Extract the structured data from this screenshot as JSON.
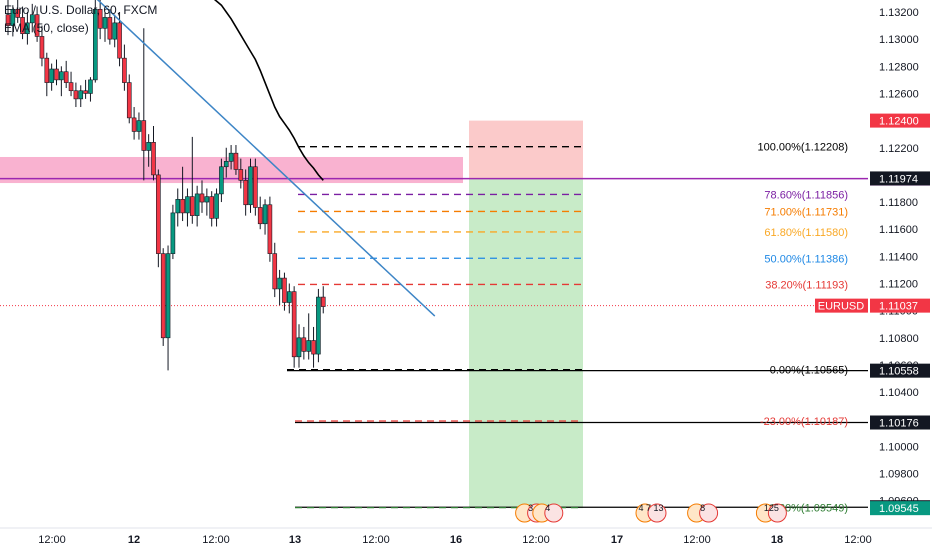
{
  "legend": {
    "title": "Euro / U.S. Dollar, 60, FXCM",
    "ema": "EMA (50, close)"
  },
  "chart_data": {
    "type": "candlestick",
    "symbol": "EURUSD",
    "timeframe": "60",
    "ylim": [
      1.095,
      1.133
    ],
    "y_ticks": [
      "1.13200",
      "1.13000",
      "1.12800",
      "1.12600",
      "1.12400",
      "1.12200",
      "1.12000",
      "1.11800",
      "1.11600",
      "1.11400",
      "1.11200",
      "1.11000",
      "1.10800",
      "1.10600",
      "1.10400",
      "1.10200",
      "1.10000",
      "1.09800",
      "1.09600"
    ],
    "x_ticks": [
      "12:00",
      "12",
      "12:00",
      "13",
      "12:00",
      "16",
      "12:00",
      "17",
      "12:00",
      "18",
      "12:00"
    ],
    "candles": [
      {
        "o": 1.1318,
        "h": 1.133,
        "l": 1.1303,
        "c": 1.131
      },
      {
        "o": 1.131,
        "h": 1.1325,
        "l": 1.1302,
        "c": 1.1322
      },
      {
        "o": 1.1322,
        "h": 1.133,
        "l": 1.1312,
        "c": 1.1316
      },
      {
        "o": 1.1316,
        "h": 1.1324,
        "l": 1.13,
        "c": 1.1304
      },
      {
        "o": 1.1304,
        "h": 1.132,
        "l": 1.1296,
        "c": 1.1312
      },
      {
        "o": 1.1312,
        "h": 1.1326,
        "l": 1.1305,
        "c": 1.1318
      },
      {
        "o": 1.1318,
        "h": 1.1324,
        "l": 1.1298,
        "c": 1.1302
      },
      {
        "o": 1.1302,
        "h": 1.131,
        "l": 1.128,
        "c": 1.1286
      },
      {
        "o": 1.1286,
        "h": 1.129,
        "l": 1.1258,
        "c": 1.1268
      },
      {
        "o": 1.1268,
        "h": 1.1282,
        "l": 1.1262,
        "c": 1.1278
      },
      {
        "o": 1.1278,
        "h": 1.1285,
        "l": 1.1266,
        "c": 1.127
      },
      {
        "o": 1.127,
        "h": 1.128,
        "l": 1.1258,
        "c": 1.1276
      },
      {
        "o": 1.1276,
        "h": 1.1284,
        "l": 1.1264,
        "c": 1.1268
      },
      {
        "o": 1.1268,
        "h": 1.1276,
        "l": 1.1258,
        "c": 1.1262
      },
      {
        "o": 1.1262,
        "h": 1.1268,
        "l": 1.125,
        "c": 1.1256
      },
      {
        "o": 1.1256,
        "h": 1.1266,
        "l": 1.125,
        "c": 1.1262
      },
      {
        "o": 1.1262,
        "h": 1.127,
        "l": 1.1256,
        "c": 1.126
      },
      {
        "o": 1.126,
        "h": 1.1272,
        "l": 1.1254,
        "c": 1.127
      },
      {
        "o": 1.127,
        "h": 1.133,
        "l": 1.1268,
        "c": 1.1322
      },
      {
        "o": 1.1322,
        "h": 1.133,
        "l": 1.13,
        "c": 1.1308
      },
      {
        "o": 1.1308,
        "h": 1.132,
        "l": 1.1298,
        "c": 1.1316
      },
      {
        "o": 1.1316,
        "h": 1.1322,
        "l": 1.1296,
        "c": 1.13
      },
      {
        "o": 1.13,
        "h": 1.1318,
        "l": 1.1294,
        "c": 1.1312
      },
      {
        "o": 1.1312,
        "h": 1.132,
        "l": 1.128,
        "c": 1.1286
      },
      {
        "o": 1.1286,
        "h": 1.1296,
        "l": 1.1262,
        "c": 1.1268
      },
      {
        "o": 1.1268,
        "h": 1.1274,
        "l": 1.1238,
        "c": 1.1242
      },
      {
        "o": 1.1242,
        "h": 1.125,
        "l": 1.1226,
        "c": 1.1232
      },
      {
        "o": 1.1232,
        "h": 1.1246,
        "l": 1.1226,
        "c": 1.124
      },
      {
        "o": 1.124,
        "h": 1.1308,
        "l": 1.1196,
        "c": 1.1218
      },
      {
        "o": 1.1218,
        "h": 1.123,
        "l": 1.1206,
        "c": 1.1224
      },
      {
        "o": 1.1224,
        "h": 1.1236,
        "l": 1.1196,
        "c": 1.12
      },
      {
        "o": 1.12,
        "h": 1.1204,
        "l": 1.1132,
        "c": 1.1142
      },
      {
        "o": 1.1142,
        "h": 1.1146,
        "l": 1.1074,
        "c": 1.108
      },
      {
        "o": 1.108,
        "h": 1.1148,
        "l": 1.1056,
        "c": 1.1142
      },
      {
        "o": 1.1142,
        "h": 1.1178,
        "l": 1.1138,
        "c": 1.1172
      },
      {
        "o": 1.1172,
        "h": 1.119,
        "l": 1.1162,
        "c": 1.1182
      },
      {
        "o": 1.1182,
        "h": 1.1206,
        "l": 1.1166,
        "c": 1.1172
      },
      {
        "o": 1.1172,
        "h": 1.119,
        "l": 1.1162,
        "c": 1.1184
      },
      {
        "o": 1.1184,
        "h": 1.1228,
        "l": 1.1164,
        "c": 1.117
      },
      {
        "o": 1.117,
        "h": 1.1192,
        "l": 1.1162,
        "c": 1.1186
      },
      {
        "o": 1.1186,
        "h": 1.1196,
        "l": 1.1172,
        "c": 1.118
      },
      {
        "o": 1.118,
        "h": 1.119,
        "l": 1.117,
        "c": 1.1184
      },
      {
        "o": 1.1184,
        "h": 1.1188,
        "l": 1.1162,
        "c": 1.1168
      },
      {
        "o": 1.1168,
        "h": 1.119,
        "l": 1.1162,
        "c": 1.1186
      },
      {
        "o": 1.1186,
        "h": 1.1212,
        "l": 1.118,
        "c": 1.1206
      },
      {
        "o": 1.1206,
        "h": 1.122,
        "l": 1.1198,
        "c": 1.121
      },
      {
        "o": 1.121,
        "h": 1.1222,
        "l": 1.1204,
        "c": 1.1216
      },
      {
        "o": 1.1216,
        "h": 1.1222,
        "l": 1.12,
        "c": 1.1204
      },
      {
        "o": 1.1204,
        "h": 1.1212,
        "l": 1.119,
        "c": 1.1196
      },
      {
        "o": 1.1196,
        "h": 1.1204,
        "l": 1.117,
        "c": 1.1178
      },
      {
        "o": 1.1178,
        "h": 1.1212,
        "l": 1.1172,
        "c": 1.1206
      },
      {
        "o": 1.1206,
        "h": 1.1212,
        "l": 1.117,
        "c": 1.1176
      },
      {
        "o": 1.1176,
        "h": 1.1184,
        "l": 1.116,
        "c": 1.1164
      },
      {
        "o": 1.1164,
        "h": 1.1182,
        "l": 1.1156,
        "c": 1.1178
      },
      {
        "o": 1.1178,
        "h": 1.1184,
        "l": 1.1136,
        "c": 1.1142
      },
      {
        "o": 1.1142,
        "h": 1.115,
        "l": 1.111,
        "c": 1.1116
      },
      {
        "o": 1.1116,
        "h": 1.113,
        "l": 1.1104,
        "c": 1.1124
      },
      {
        "o": 1.1124,
        "h": 1.1128,
        "l": 1.11,
        "c": 1.1106
      },
      {
        "o": 1.1106,
        "h": 1.112,
        "l": 1.1098,
        "c": 1.1114
      },
      {
        "o": 1.1114,
        "h": 1.1118,
        "l": 1.1058,
        "c": 1.1066
      },
      {
        "o": 1.1066,
        "h": 1.109,
        "l": 1.1058,
        "c": 1.108
      },
      {
        "o": 1.108,
        "h": 1.1088,
        "l": 1.1064,
        "c": 1.107
      },
      {
        "o": 1.107,
        "h": 1.1098,
        "l": 1.1064,
        "c": 1.1078
      },
      {
        "o": 1.1078,
        "h": 1.1088,
        "l": 1.1058,
        "c": 1.1068
      },
      {
        "o": 1.1068,
        "h": 1.1116,
        "l": 1.1062,
        "c": 1.111
      },
      {
        "o": 1.111,
        "h": 1.1118,
        "l": 1.1098,
        "c": 1.1103
      }
    ],
    "ema": [
      1.1342,
      1.134,
      1.1337,
      1.1334,
      1.1331,
      1.1328,
      1.1325,
      1.132,
      1.1315,
      1.1309,
      1.1303,
      1.1297,
      1.1291,
      1.1285,
      1.1277,
      1.1268,
      1.1259,
      1.125,
      1.1243,
      1.1238,
      1.1233,
      1.1227,
      1.122,
      1.1214,
      1.1209,
      1.1205,
      1.12,
      1.1196
    ],
    "ema_start_index": 38,
    "trendline": {
      "from": {
        "i": 17,
        "v": 1.1334
      },
      "to": {
        "i": 88,
        "v": 1.1096
      },
      "color": "#3d85c6"
    },
    "resistance_zone": {
      "from": 1.1194,
      "to": 1.12132,
      "color": "#f8a5c8"
    },
    "fib_levels": [
      {
        "label": "100.00%(1.12208)",
        "value": 1.12208,
        "color": "#000000"
      },
      {
        "label": "78.60%(1.11856)",
        "value": 1.11856,
        "color": "#7b1fa2"
      },
      {
        "label": "71.00%(1.11731)",
        "value": 1.11731,
        "color": "#f57c00"
      },
      {
        "label": "61.80%(1.11580)",
        "value": 1.1158,
        "color": "#f9a825"
      },
      {
        "label": "50.00%(1.11386)",
        "value": 1.11386,
        "color": "#1e88e5"
      },
      {
        "label": "38.20%(1.11193)",
        "value": 1.11193,
        "color": "#e53935"
      },
      {
        "label": "0.00%(1.10565)",
        "value": 1.10565,
        "color": "#000000"
      },
      {
        "label": "-23.00%(1.10187)",
        "value": 1.10187,
        "color": "#e53935"
      },
      {
        "label": "-61.80%(1.09549)",
        "value": 1.09549,
        "color": "#2e7d32"
      }
    ],
    "horizontal_levels": [
      {
        "value": 1.11973,
        "color": "#9c27b0"
      },
      {
        "value": 1.10558,
        "color": "#000000"
      },
      {
        "value": 1.10176,
        "color": "#000000"
      },
      {
        "value": 1.09552,
        "color": "#000000"
      }
    ],
    "current_price": {
      "value": 1.11037,
      "label": "1.11037",
      "symbol_label": "EURUSD",
      "color": "#f23645"
    },
    "position": {
      "entry": 1.11973,
      "stop": 1.124,
      "target": 1.09545,
      "profit_color": "#c8ebc8",
      "loss_color": "#fbcaca"
    },
    "price_tags": [
      {
        "value": 1.124,
        "label": "1.12400",
        "bg": "#f23645",
        "fg": "#ffffff"
      },
      {
        "value": 1.11973,
        "label": "1.11973",
        "bg": "#9c27b0",
        "fg": "#ffffff"
      },
      {
        "value": 1.11974,
        "label": "1.11974",
        "bg": "#131722",
        "fg": "#ffffff"
      },
      {
        "value": 1.10558,
        "label": "1.10558",
        "bg": "#131722",
        "fg": "#ffffff"
      },
      {
        "value": 1.10176,
        "label": "1.10176",
        "bg": "#131722",
        "fg": "#ffffff"
      },
      {
        "value": 1.09552,
        "label": "1.09552",
        "bg": "#131722",
        "fg": "#ffffff"
      },
      {
        "value": 1.09545,
        "label": "1.09545",
        "bg": "#089981",
        "fg": "#ffffff"
      }
    ],
    "events": [
      {
        "label": "3",
        "ix": 122
      },
      {
        "label": "4",
        "ix": 126
      },
      {
        "label": "4 7 13",
        "ix": 150
      },
      {
        "label": "8",
        "ix": 162
      },
      {
        "label": "125",
        "ix": 178
      }
    ],
    "colors": {
      "up": "#089981",
      "down": "#f23645",
      "ema": "#000000",
      "text": "#131722",
      "axis_text": "#131722"
    }
  }
}
